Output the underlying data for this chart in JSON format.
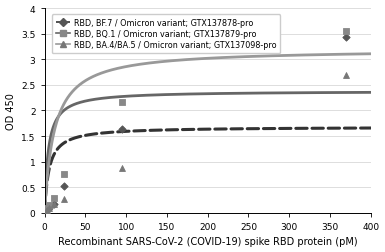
{
  "title": "",
  "xlabel": "Recombinant SARS-CoV-2 (COVID-19) spike RBD protein (pM)",
  "ylabel": "OD 450",
  "xlim": [
    0,
    400
  ],
  "ylim": [
    0,
    4
  ],
  "xticks": [
    0,
    50,
    100,
    150,
    200,
    250,
    300,
    350,
    400
  ],
  "yticks": [
    0,
    0.5,
    1.0,
    1.5,
    2.0,
    2.5,
    3.0,
    3.5,
    4.0
  ],
  "series": [
    {
      "label": "RBD, BF.7 / Omicron variant; GTX137878-pro",
      "marker": "D",
      "marker_color": "#555555",
      "line_style": "--",
      "line_color": "#333333",
      "data_x": [
        1.48,
        2.96,
        5.93,
        11.85,
        23.7,
        94.8,
        370
      ],
      "data_y": [
        0.05,
        0.07,
        0.1,
        0.18,
        0.53,
        1.63,
        3.44
      ],
      "curve_params": {
        "Bmax": 1.68,
        "Kd": 5.5
      }
    },
    {
      "label": "RBD, BQ.1 / Omicron variant; GTX137879-pro",
      "marker": "s",
      "marker_color": "#888888",
      "line_style": "-",
      "line_color": "#666666",
      "data_x": [
        1.48,
        2.96,
        5.93,
        11.85,
        23.7,
        94.8,
        370
      ],
      "data_y": [
        0.06,
        0.1,
        0.16,
        0.3,
        0.75,
        2.17,
        3.56
      ],
      "curve_params": {
        "Bmax": 2.38,
        "Kd": 4.5
      }
    },
    {
      "label": "RBD, BA.4/BA.5 / Omicron variant; GTX137098-pro",
      "marker": "^",
      "marker_color": "#777777",
      "line_style": "-",
      "line_color": "#999999",
      "data_x": [
        1.48,
        2.96,
        5.93,
        11.85,
        23.7,
        94.8,
        370
      ],
      "data_y": [
        0.04,
        0.06,
        0.09,
        0.18,
        0.27,
        0.87,
        2.7
      ],
      "curve_params": {
        "Bmax": 3.2,
        "Kd": 12.0
      }
    }
  ],
  "legend_fontsize": 5.8,
  "axis_fontsize": 7.0,
  "tick_fontsize": 6.5
}
